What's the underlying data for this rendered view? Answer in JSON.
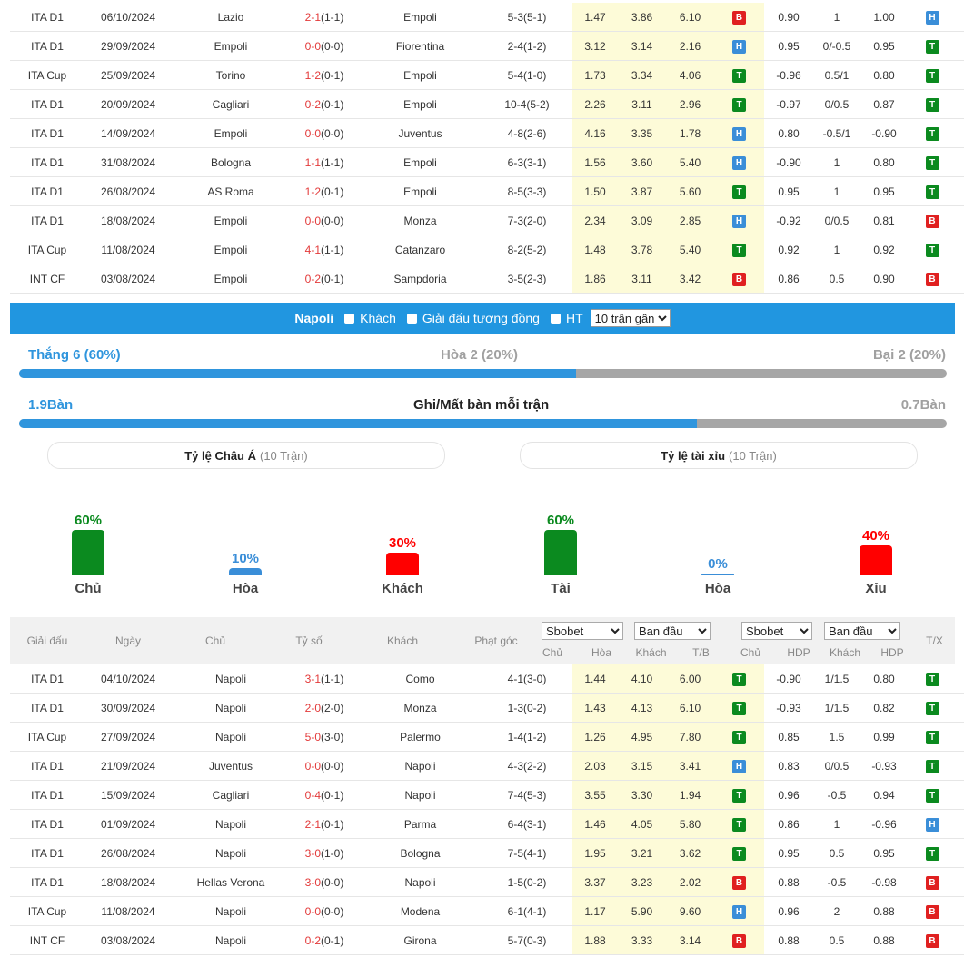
{
  "top_rows": [
    {
      "league": "ITA D1",
      "date": "06/10/2024",
      "home": "Lazio",
      "home_hl": false,
      "score": "2-1",
      "ht": "(1-1)",
      "away": "Empoli",
      "away_hl": true,
      "corner": "5-3(5-1)",
      "o1": "1.47",
      "o2": "3.86",
      "o3": "6.10",
      "tb": "B",
      "a1": "0.90",
      "hdp": "1",
      "a2": "1.00",
      "r1": "H",
      "r2": "T"
    },
    {
      "league": "ITA D1",
      "date": "29/09/2024",
      "home": "Empoli",
      "home_hl": true,
      "score": "0-0",
      "ht": "(0-0)",
      "away": "Fiorentina",
      "away_hl": false,
      "corner": "2-4(1-2)",
      "o1": "3.12",
      "o2": "3.14",
      "o3": "2.16",
      "tb": "H",
      "a1": "0.95",
      "hdp": "0/-0.5",
      "a2": "0.95",
      "r1": "T",
      "r2": "X"
    },
    {
      "league": "ITA Cup",
      "date": "25/09/2024",
      "home": "Torino",
      "home_hl": false,
      "score": "1-2",
      "ht": "(0-1)",
      "away": "Empoli",
      "away_hl": true,
      "corner": "5-4(1-0)",
      "o1": "1.73",
      "o2": "3.34",
      "o3": "4.06",
      "tb": "T",
      "a1": "-0.96",
      "hdp": "0.5/1",
      "a2": "0.80",
      "r1": "T",
      "r2": "T"
    },
    {
      "league": "ITA D1",
      "date": "20/09/2024",
      "home": "Cagliari",
      "home_hl": false,
      "score": "0-2",
      "ht": "(0-1)",
      "away": "Empoli",
      "away_hl": true,
      "corner": "10-4(5-2)",
      "o1": "2.26",
      "o2": "3.11",
      "o3": "2.96",
      "tb": "T",
      "a1": "-0.97",
      "hdp": "0/0.5",
      "a2": "0.87",
      "r1": "T",
      "r2": "X"
    },
    {
      "league": "ITA D1",
      "date": "14/09/2024",
      "home": "Empoli",
      "home_hl": true,
      "score": "0-0",
      "ht": "(0-0)",
      "away": "Juventus",
      "away_hl": false,
      "corner": "4-8(2-6)",
      "o1": "4.16",
      "o2": "3.35",
      "o3": "1.78",
      "tb": "H",
      "a1": "0.80",
      "hdp": "-0.5/1",
      "a2": "-0.90",
      "r1": "T",
      "r2": "X"
    },
    {
      "league": "ITA D1",
      "date": "31/08/2024",
      "home": "Bologna",
      "home_hl": false,
      "score": "1-1",
      "ht": "(1-1)",
      "away": "Empoli",
      "away_hl": true,
      "corner": "6-3(3-1)",
      "o1": "1.56",
      "o2": "3.60",
      "o3": "5.40",
      "tb": "H",
      "a1": "-0.90",
      "hdp": "1",
      "a2": "0.80",
      "r1": "T",
      "r2": "X"
    },
    {
      "league": "ITA D1",
      "date": "26/08/2024",
      "home": "AS Roma",
      "home_hl": false,
      "score": "1-2",
      "ht": "(0-1)",
      "away": "Empoli",
      "away_hl": true,
      "corner": "8-5(3-3)",
      "o1": "1.50",
      "o2": "3.87",
      "o3": "5.60",
      "tb": "T",
      "a1": "0.95",
      "hdp": "1",
      "a2": "0.95",
      "r1": "T",
      "r2": "T"
    },
    {
      "league": "ITA D1",
      "date": "18/08/2024",
      "home": "Empoli",
      "home_hl": true,
      "score": "0-0",
      "ht": "(0-0)",
      "away": "Monza",
      "away_hl": false,
      "corner": "7-3(2-0)",
      "o1": "2.34",
      "o2": "3.09",
      "o3": "2.85",
      "tb": "H",
      "a1": "-0.92",
      "hdp": "0/0.5",
      "a2": "0.81",
      "r1": "B",
      "r2": "X"
    },
    {
      "league": "ITA Cup",
      "date": "11/08/2024",
      "home": "Empoli",
      "home_hl": true,
      "score": "4-1",
      "ht": "(1-1)",
      "away": "Catanzaro",
      "away_hl": false,
      "corner": "8-2(5-2)",
      "o1": "1.48",
      "o2": "3.78",
      "o3": "5.40",
      "tb": "T",
      "a1": "0.92",
      "hdp": "1",
      "a2": "0.92",
      "r1": "T",
      "r2": "T"
    },
    {
      "league": "INT CF",
      "date": "03/08/2024",
      "home": "Empoli",
      "home_hl": true,
      "score": "0-2",
      "ht": "(0-1)",
      "away": "Sampdoria",
      "away_hl": false,
      "corner": "3-5(2-3)",
      "o1": "1.86",
      "o2": "3.11",
      "o3": "3.42",
      "tb": "B",
      "a1": "0.86",
      "hdp": "0.5",
      "a2": "0.90",
      "r1": "B",
      "r2": "X"
    }
  ],
  "filter": {
    "team": "Napoli",
    "opt1": "Khách",
    "opt2": "Giải đấu tương đồng",
    "opt3": "HT",
    "select": "10 trận gần"
  },
  "summary": {
    "win": "Thắng 6 (60%)",
    "draw": "Hòa 2 (20%)",
    "loss": "Bại 2 (20%)",
    "win_frac": 0.6,
    "gf": "1.9Bàn",
    "goals_title": "Ghi/Mất bàn mỗi trận",
    "ga": "0.7Bàn",
    "goals_frac": 0.731
  },
  "asian": {
    "title": "Tỷ lệ Châu Á",
    "sub": "(10 Trận)",
    "items": [
      {
        "pct": "60%",
        "value": 0.6,
        "label": "Chủ",
        "color": "#0b8a1f"
      },
      {
        "pct": "10%",
        "value": 0.1,
        "label": "Hòa",
        "color": "#3a8ed8"
      },
      {
        "pct": "30%",
        "value": 0.3,
        "label": "Khách",
        "color": "#ff0000"
      }
    ]
  },
  "ou": {
    "title": "Tỷ lệ tài xỉu",
    "sub": "(10 Trận)",
    "items": [
      {
        "pct": "60%",
        "value": 0.6,
        "label": "Tài",
        "color": "#0b8a1f"
      },
      {
        "pct": "0%",
        "value": 0.0,
        "label": "Hòa",
        "color": "#3a8ed8"
      },
      {
        "pct": "40%",
        "value": 0.4,
        "label": "Xỉu",
        "color": "#ff0000"
      }
    ]
  },
  "header": {
    "league": "Giải đấu",
    "date": "Ngày",
    "home": "Chủ",
    "score": "Tỷ số",
    "away": "Khách",
    "corner": "Phạt góc",
    "sel1": "Sbobet",
    "sel2": "Ban đầu",
    "sel3": "Sbobet",
    "sel4": "Ban đầu",
    "c_chu": "Chủ",
    "c_hoa": "Hòa",
    "c_khach": "Khách",
    "c_tb": "T/B",
    "c_chu2": "Chủ",
    "c_hdp": "HDP",
    "c_khach2": "Khách",
    "c_hdp2": "HDP",
    "tx": "T/X"
  },
  "bottom_rows": [
    {
      "league": "ITA D1",
      "date": "04/10/2024",
      "home": "Napoli",
      "home_hl": true,
      "score": "3-1",
      "ht": "(1-1)",
      "away": "Como",
      "away_hl": false,
      "corner": "4-1(3-0)",
      "o1": "1.44",
      "o2": "4.10",
      "o3": "6.00",
      "tb": "T",
      "a1": "-0.90",
      "hdp": "1/1.5",
      "a2": "0.80",
      "r1": "T",
      "r2": "T"
    },
    {
      "league": "ITA D1",
      "date": "30/09/2024",
      "home": "Napoli",
      "home_hl": true,
      "score": "2-0",
      "ht": "(2-0)",
      "away": "Monza",
      "away_hl": false,
      "corner": "1-3(0-2)",
      "o1": "1.43",
      "o2": "4.13",
      "o3": "6.10",
      "tb": "T",
      "a1": "-0.93",
      "hdp": "1/1.5",
      "a2": "0.82",
      "r1": "T",
      "r2": "X"
    },
    {
      "league": "ITA Cup",
      "date": "27/09/2024",
      "home": "Napoli",
      "home_hl": true,
      "score": "5-0",
      "ht": "(3-0)",
      "away": "Palermo",
      "away_hl": false,
      "corner": "1-4(1-2)",
      "o1": "1.26",
      "o2": "4.95",
      "o3": "7.80",
      "tb": "T",
      "a1": "0.85",
      "hdp": "1.5",
      "a2": "0.99",
      "r1": "T",
      "r2": "T"
    },
    {
      "league": "ITA D1",
      "date": "21/09/2024",
      "home": "Juventus",
      "home_hl": false,
      "score": "0-0",
      "ht": "(0-0)",
      "away": "Napoli",
      "away_hl": true,
      "corner": "4-3(2-2)",
      "o1": "2.03",
      "o2": "3.15",
      "o3": "3.41",
      "tb": "H",
      "a1": "0.83",
      "hdp": "0/0.5",
      "a2": "-0.93",
      "r1": "T",
      "r2": "X"
    },
    {
      "league": "ITA D1",
      "date": "15/09/2024",
      "home": "Cagliari",
      "home_hl": false,
      "score": "0-4",
      "ht": "(0-1)",
      "away": "Napoli",
      "away_hl": true,
      "corner": "7-4(5-3)",
      "o1": "3.55",
      "o2": "3.30",
      "o3": "1.94",
      "tb": "T",
      "a1": "0.96",
      "hdp": "-0.5",
      "a2": "0.94",
      "r1": "T",
      "r2": "T"
    },
    {
      "league": "ITA D1",
      "date": "01/09/2024",
      "home": "Napoli",
      "home_hl": true,
      "score": "2-1",
      "ht": "(0-1)",
      "away": "Parma",
      "away_hl": false,
      "corner": "6-4(3-1)",
      "o1": "1.46",
      "o2": "4.05",
      "o3": "5.80",
      "tb": "T",
      "a1": "0.86",
      "hdp": "1",
      "a2": "-0.96",
      "r1": "H",
      "r2": "T"
    },
    {
      "league": "ITA D1",
      "date": "26/08/2024",
      "home": "Napoli",
      "home_hl": true,
      "score": "3-0",
      "ht": "(1-0)",
      "away": "Bologna",
      "away_hl": false,
      "corner": "7-5(4-1)",
      "o1": "1.95",
      "o2": "3.21",
      "o3": "3.62",
      "tb": "T",
      "a1": "0.95",
      "hdp": "0.5",
      "a2": "0.95",
      "r1": "T",
      "r2": "T"
    },
    {
      "league": "ITA D1",
      "date": "18/08/2024",
      "home": "Hellas Verona",
      "home_hl": false,
      "score": "3-0",
      "ht": "(0-0)",
      "away": "Napoli",
      "away_hl": true,
      "corner": "1-5(0-2)",
      "o1": "3.37",
      "o2": "3.23",
      "o3": "2.02",
      "tb": "B",
      "a1": "0.88",
      "hdp": "-0.5",
      "a2": "-0.98",
      "r1": "B",
      "r2": "T"
    },
    {
      "league": "ITA Cup",
      "date": "11/08/2024",
      "home": "Napoli",
      "home_hl": true,
      "score": "0-0",
      "ht": "(0-0)",
      "away": "Modena",
      "away_hl": false,
      "corner": "6-1(4-1)",
      "o1": "1.17",
      "o2": "5.90",
      "o3": "9.60",
      "tb": "H",
      "a1": "0.96",
      "hdp": "2",
      "a2": "0.88",
      "r1": "B",
      "r2": "X"
    },
    {
      "league": "INT CF",
      "date": "03/08/2024",
      "home": "Napoli",
      "home_hl": true,
      "score": "0-2",
      "ht": "(0-1)",
      "away": "Girona",
      "away_hl": false,
      "corner": "5-7(0-3)",
      "o1": "1.88",
      "o2": "3.33",
      "o3": "3.14",
      "tb": "B",
      "a1": "0.88",
      "hdp": "0.5",
      "a2": "0.88",
      "r1": "B",
      "r2": "X"
    }
  ]
}
